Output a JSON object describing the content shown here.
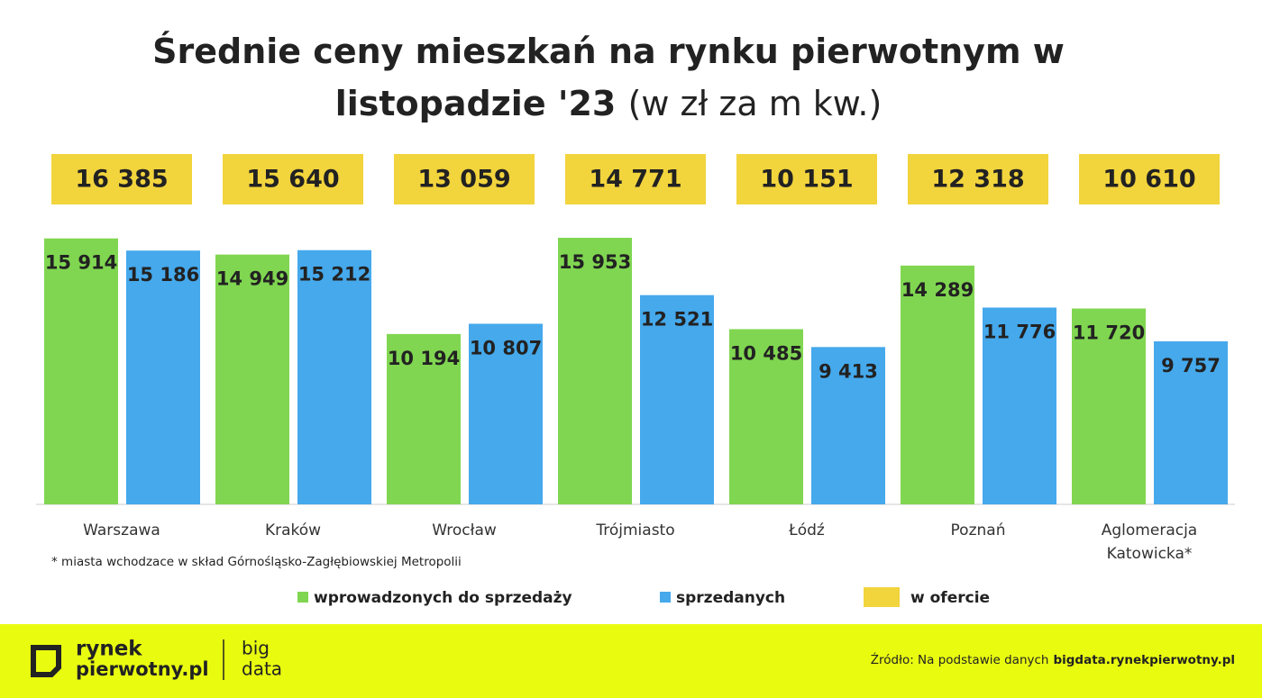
{
  "chart_data": {
    "type": "bar",
    "title": "Średnie ceny mieszkań na rynku pierwotnym w listopadzie '23",
    "subtitle": "(w zł za m kw.)",
    "categories": [
      "Warszawa",
      "Kraków",
      "Wrocław",
      "Trójmiasto",
      "Łódź",
      "Poznań",
      "Aglomeracja Katowicka*"
    ],
    "series": [
      {
        "name": "wprowadzonych do sprzedaży",
        "color": "#80d651",
        "values": [
          15914,
          14949,
          10194,
          15953,
          10485,
          14289,
          11720
        ],
        "value_labels": [
          "15 914",
          "14 949",
          "10 194",
          "15 953",
          "10 485",
          "14 289",
          "11 720"
        ]
      },
      {
        "name": "sprzedanych",
        "color": "#45a9ec",
        "values": [
          15186,
          15212,
          10807,
          12521,
          9413,
          11776,
          9757
        ],
        "value_labels": [
          "15 186",
          "15 212",
          "10 807",
          "12 521",
          "9 413",
          "11 776",
          "9 757"
        ]
      },
      {
        "name": "w ofercie",
        "color": "#f2d43d",
        "values": [
          16385,
          15640,
          13059,
          14771,
          10151,
          12318,
          10610
        ],
        "value_labels": [
          "16 385",
          "15 640",
          "13 059",
          "14 771",
          "10 151",
          "12 318",
          "10 610"
        ]
      }
    ],
    "footnote": "* miasta wchodzace w skład Górnośląsko-Zagłębiowskiej Metropolii",
    "source": "Źródło: Na podstawie danych",
    "source_link": "bigdata.rynekpierwotny.pl",
    "logo": [
      "rynek",
      "pierwotny.pl",
      "big",
      "data"
    ]
  }
}
